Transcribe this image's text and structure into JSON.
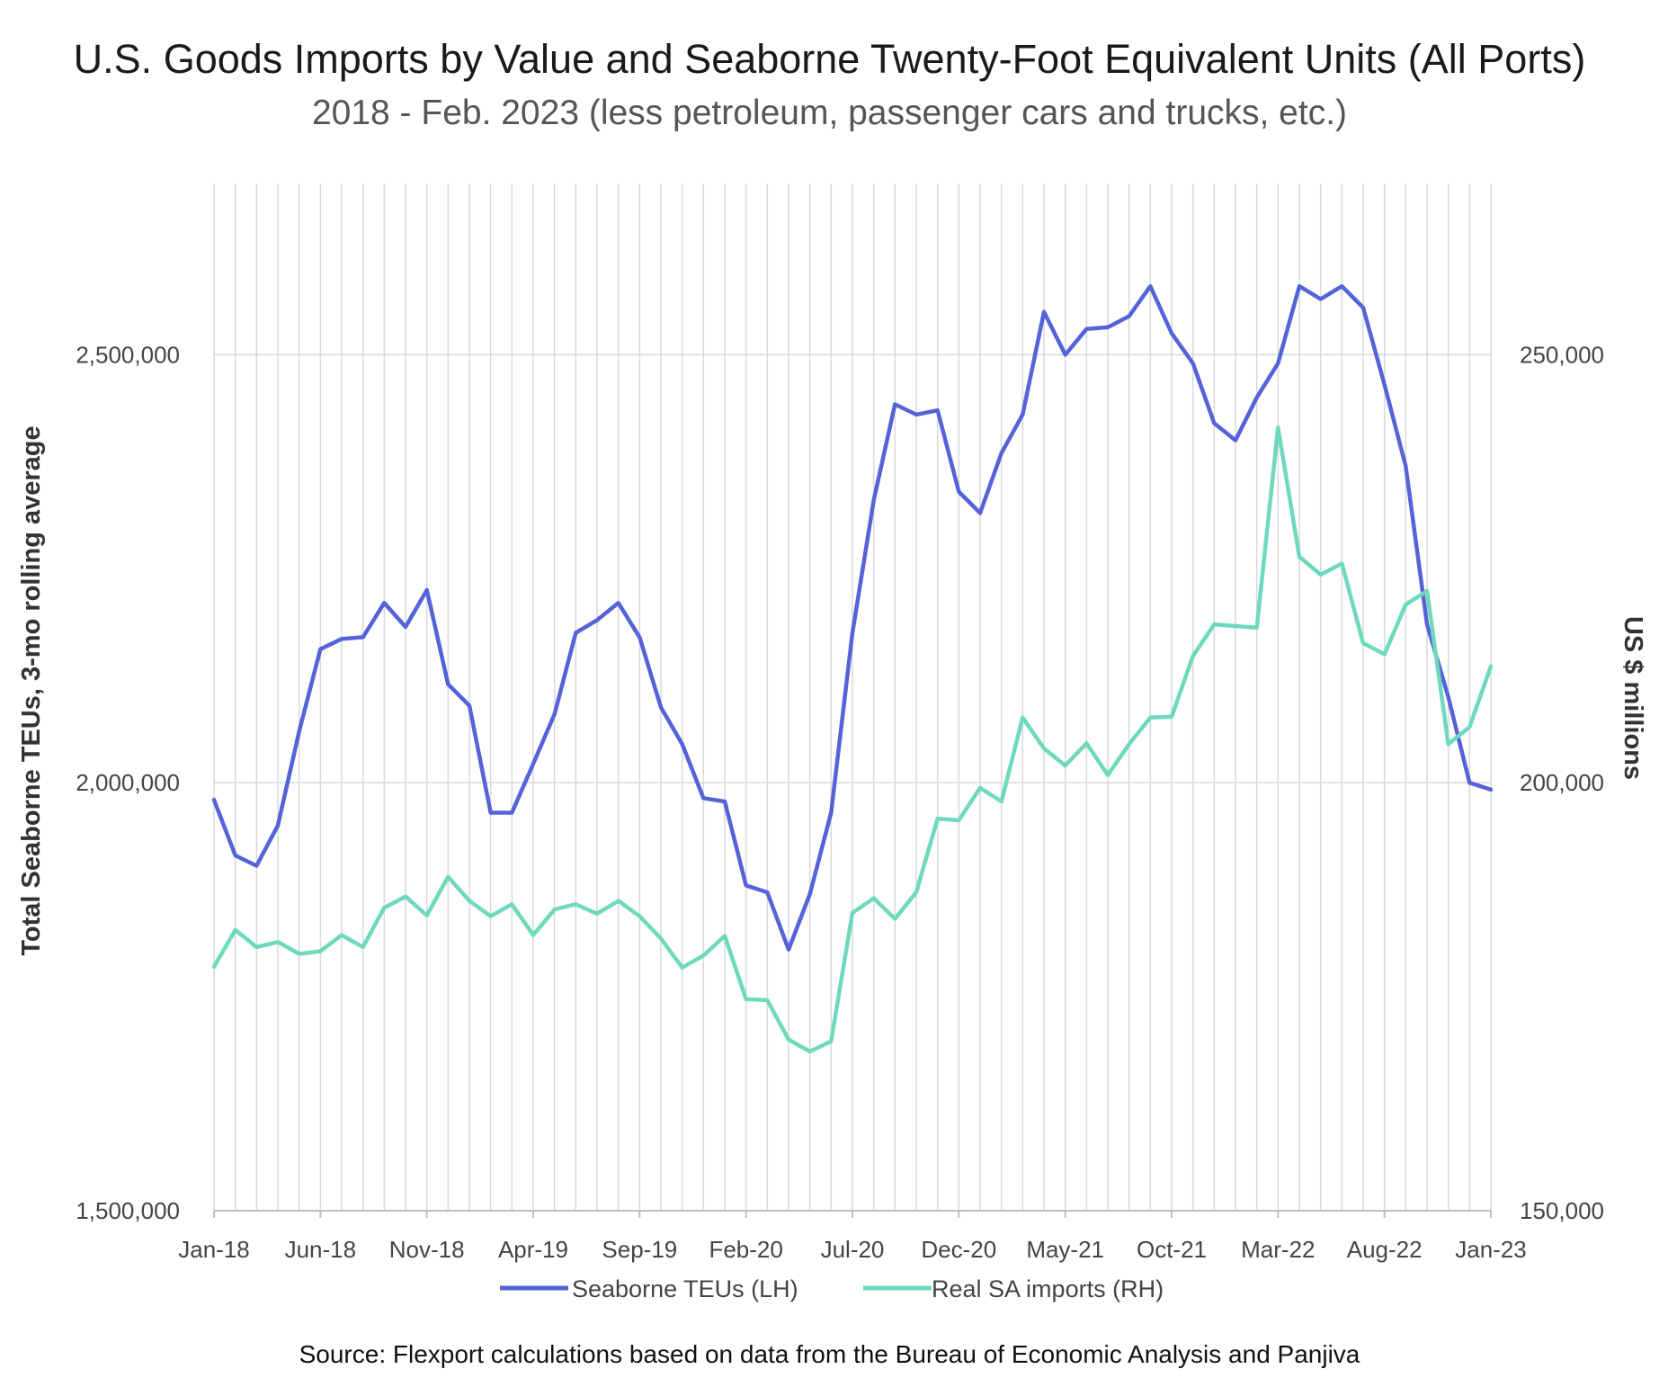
{
  "chart_data": {
    "type": "line",
    "title": "U.S. Goods Imports by Value and Seaborne Twenty-Foot Equivalent Units (All Ports)",
    "subtitle": "2018 - Feb. 2023 (less petroleum, passenger cars and trucks, etc.)",
    "ylabel_left": "Total Seaborne TEUs, 3-mo rolling average",
    "ylabel_right": "US $ millions",
    "ylim_left": [
      1500000,
      2700000
    ],
    "ylim_right": [
      150000,
      270000
    ],
    "yticks_left": [
      "1,500,000",
      "2,000,000",
      "2,500,000"
    ],
    "yticks_left_values": [
      1500000,
      2000000,
      2500000
    ],
    "yticks_right": [
      "150,000",
      "200,000",
      "250,000"
    ],
    "yticks_right_values": [
      150000,
      200000,
      250000
    ],
    "grid": true,
    "legend_position": "bottom",
    "x_tick_labels": [
      "Jan-18",
      "Jun-18",
      "Nov-18",
      "Apr-19",
      "Sep-19",
      "Feb-20",
      "Jul-20",
      "Dec-20",
      "May-21",
      "Oct-21",
      "Mar-22",
      "Aug-22",
      "Jan-23"
    ],
    "x_tick_indices": [
      0,
      5,
      10,
      15,
      20,
      25,
      30,
      35,
      40,
      45,
      50,
      55,
      60
    ],
    "categories": [
      "Jan-18",
      "Feb-18",
      "Mar-18",
      "Apr-18",
      "May-18",
      "Jun-18",
      "Jul-18",
      "Aug-18",
      "Sep-18",
      "Oct-18",
      "Nov-18",
      "Dec-18",
      "Jan-19",
      "Feb-19",
      "Mar-19",
      "Apr-19",
      "May-19",
      "Jun-19",
      "Jul-19",
      "Aug-19",
      "Sep-19",
      "Oct-19",
      "Nov-19",
      "Dec-19",
      "Jan-20",
      "Feb-20",
      "Mar-20",
      "Apr-20",
      "May-20",
      "Jun-20",
      "Jul-20",
      "Aug-20",
      "Sep-20",
      "Oct-20",
      "Nov-20",
      "Dec-20",
      "Jan-21",
      "Feb-21",
      "Mar-21",
      "Apr-21",
      "May-21",
      "Jun-21",
      "Jul-21",
      "Aug-21",
      "Sep-21",
      "Oct-21",
      "Nov-21",
      "Dec-21",
      "Jan-22",
      "Feb-22",
      "Mar-22",
      "Apr-22",
      "May-22",
      "Jun-22",
      "Jul-22",
      "Aug-22",
      "Sep-22",
      "Oct-22",
      "Nov-22",
      "Dec-22",
      "Jan-23"
    ],
    "series": [
      {
        "name": "Seaborne TEUs (LH)",
        "axis": "left",
        "color": "#5563d9",
        "values": [
          1980000,
          1915000,
          1903000,
          1950000,
          2060000,
          2156000,
          2168000,
          2170000,
          2210000,
          2182000,
          2225000,
          2115000,
          2090000,
          1965000,
          1965000,
          2022000,
          2080000,
          2175000,
          2190000,
          2210000,
          2170000,
          2088000,
          2045000,
          1982000,
          1978000,
          1880000,
          1872000,
          1805000,
          1870000,
          1965000,
          2175000,
          2330000,
          2442000,
          2430000,
          2435000,
          2340000,
          2315000,
          2385000,
          2430000,
          2550000,
          2500000,
          2530000,
          2532000,
          2545000,
          2580000,
          2525000,
          2490000,
          2420000,
          2400000,
          2450000,
          2490000,
          2580000,
          2565000,
          2580000,
          2555000,
          2465000,
          2370000,
          2185000,
          2100000,
          2000000,
          1992000
        ]
      },
      {
        "name": "Real SA imports (RH)",
        "axis": "right",
        "color": "#6ed9bd",
        "values": [
          178500,
          182800,
          180800,
          181400,
          180000,
          180300,
          182200,
          180800,
          185400,
          186700,
          184500,
          189000,
          186200,
          184400,
          185800,
          182200,
          185200,
          185800,
          184700,
          186200,
          184400,
          181800,
          178400,
          179800,
          182100,
          174700,
          174600,
          170000,
          168600,
          169800,
          184800,
          186500,
          184100,
          187200,
          195800,
          195600,
          199400,
          197800,
          207600,
          204000,
          202000,
          204600,
          200900,
          204500,
          207600,
          207700,
          214800,
          218500,
          218300,
          218100,
          241500,
          226400,
          224300,
          225600,
          216300,
          215000,
          220800,
          222400,
          204500,
          206500,
          213600
        ]
      }
    ]
  },
  "source": "Source: Flexport calculations based on data from the Bureau of Economic Analysis and Panjiva"
}
